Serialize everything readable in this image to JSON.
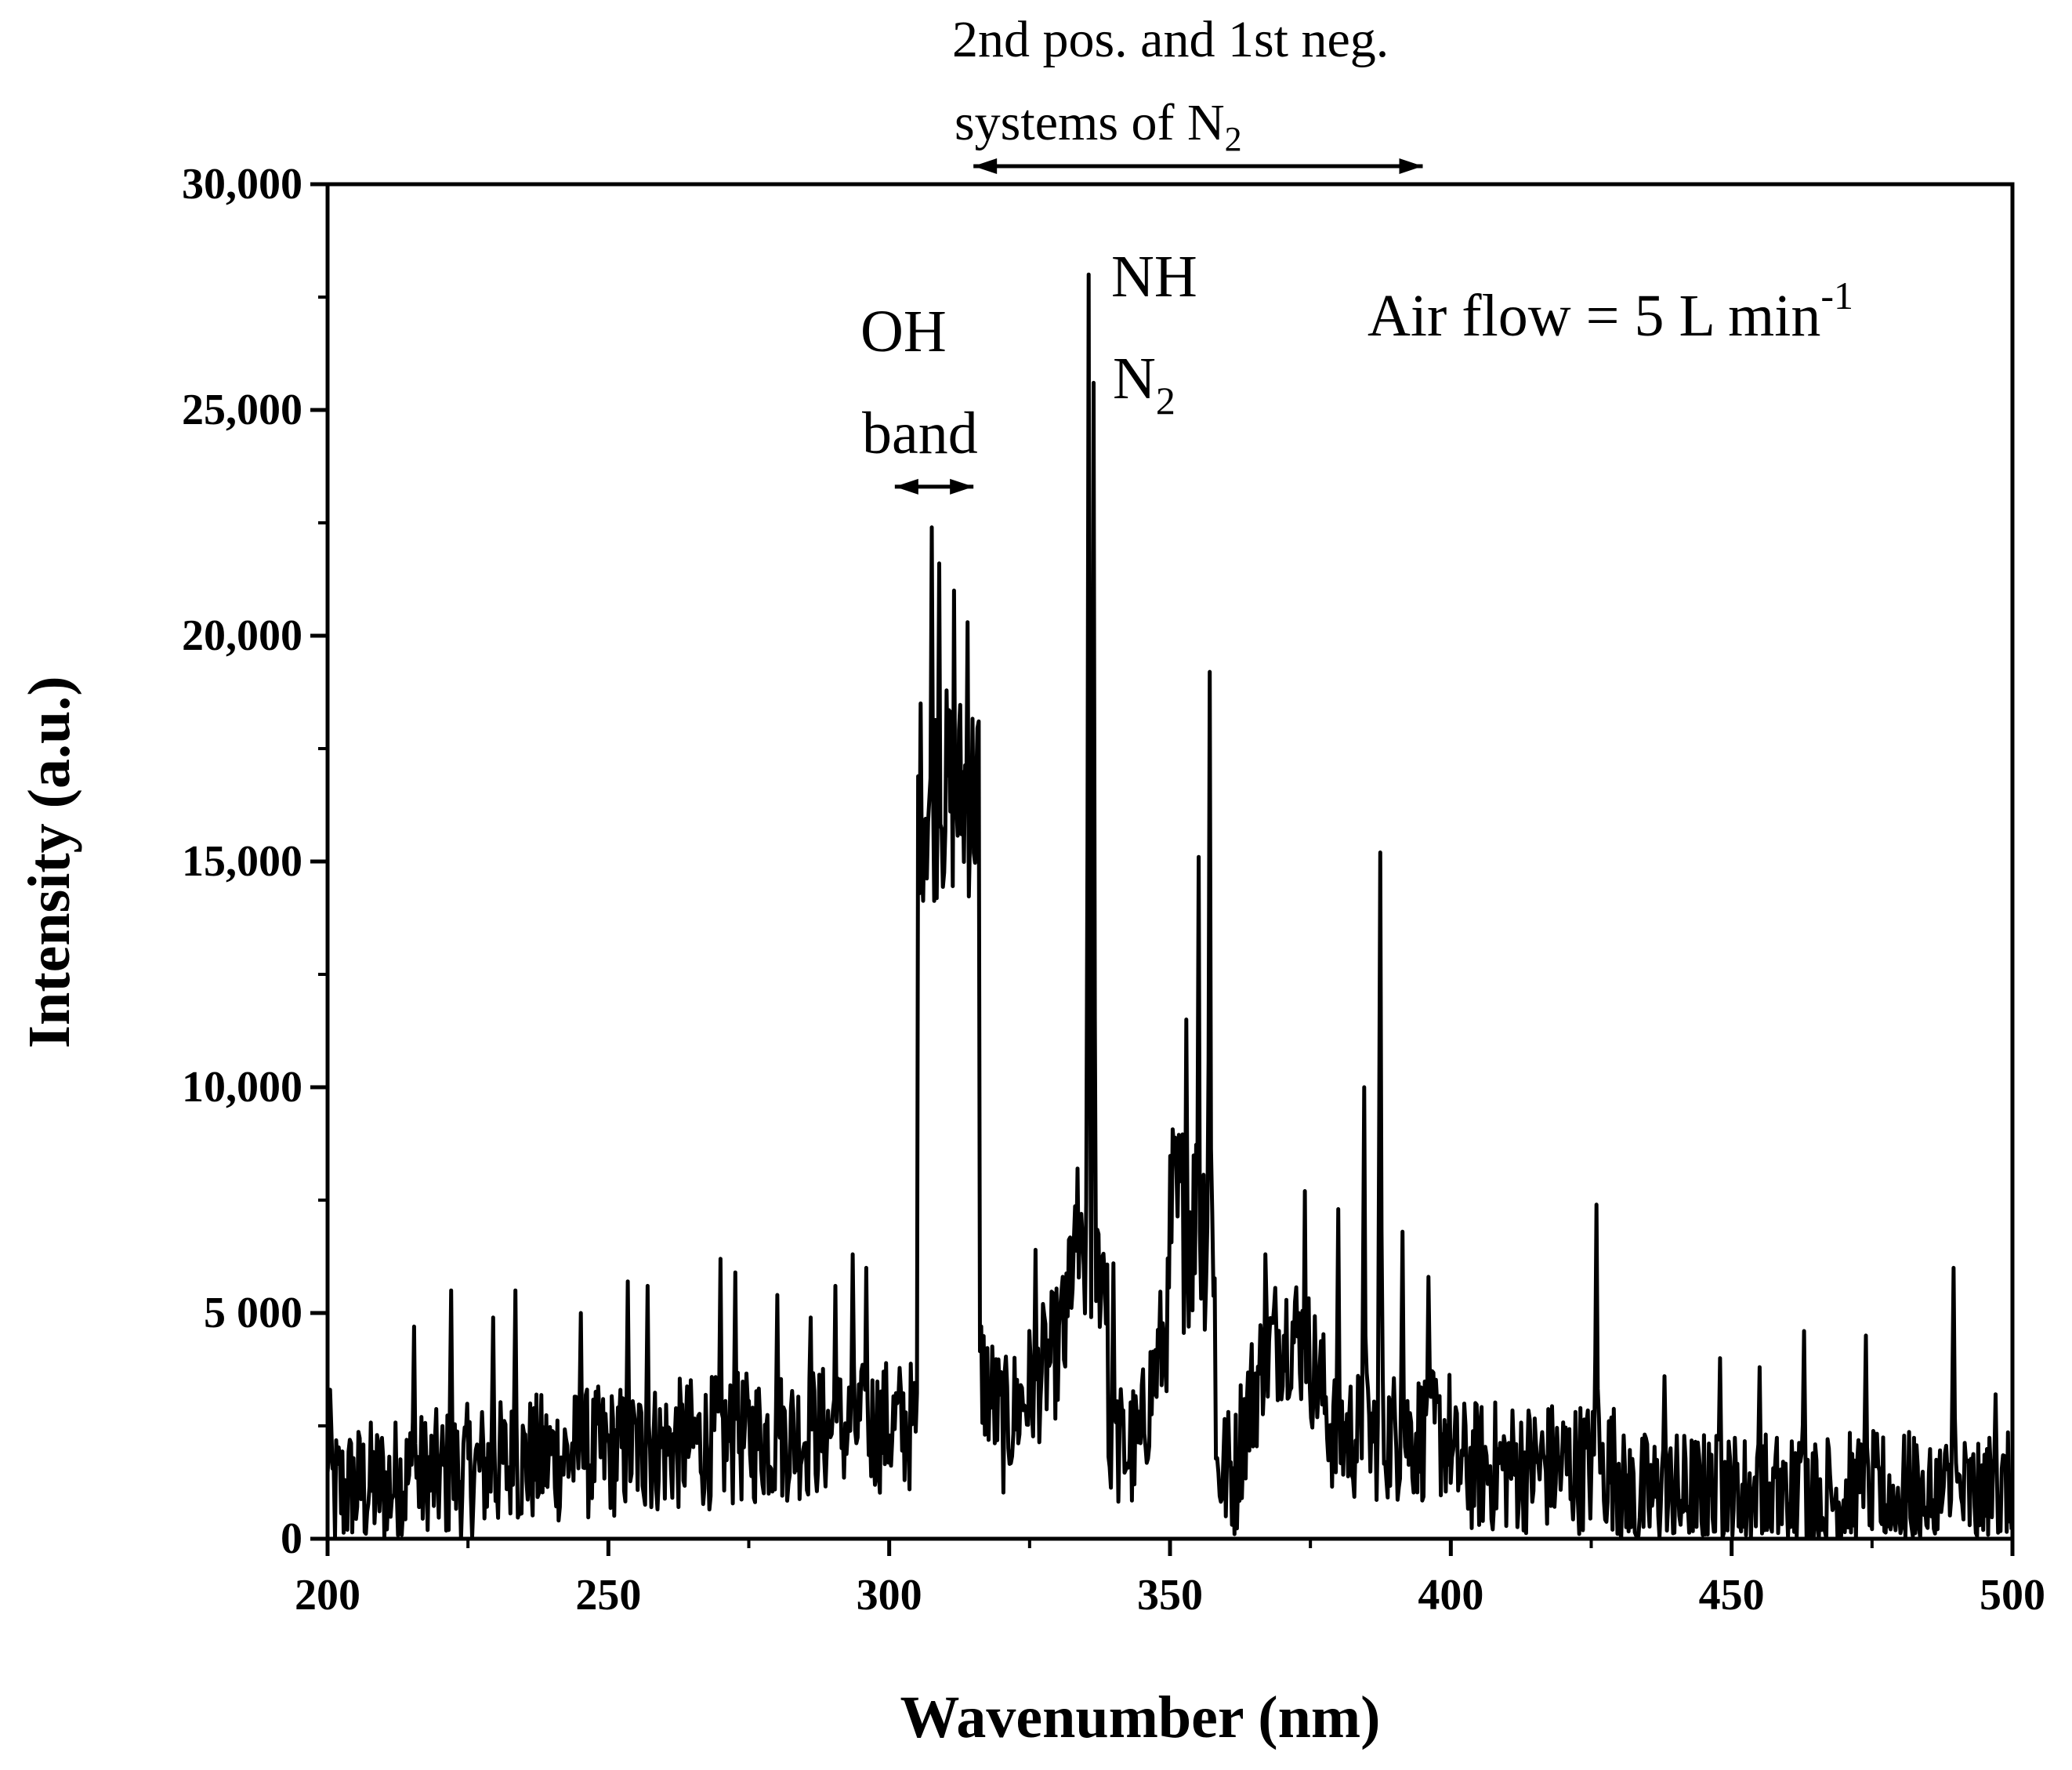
{
  "chart_data": {
    "type": "line",
    "title": "",
    "xlabel": "Wavenumber (nm)",
    "ylabel": "Intensity (a.u.)",
    "xlim": [
      200,
      500
    ],
    "ylim": [
      0,
      30000
    ],
    "grid": false,
    "x_ticks": [
      200,
      250,
      300,
      350,
      400,
      450,
      500
    ],
    "x_tick_labels": [
      "200",
      "250",
      "300",
      "350",
      "400",
      "450",
      "500"
    ],
    "y_ticks": [
      0,
      5000,
      10000,
      15000,
      20000,
      25000,
      30000
    ],
    "y_tick_labels": [
      "0",
      "5 000",
      "10,000",
      "15,000",
      "20,000",
      "25,000",
      "30,000"
    ],
    "series": [
      {
        "name": "Air flow = 5 L min-1",
        "color": "#000000",
        "peaks": [
          {
            "x": 200.5,
            "y": 3300
          },
          {
            "x": 215.5,
            "y": 4700
          },
          {
            "x": 222,
            "y": 5500
          },
          {
            "x": 229.5,
            "y": 4900
          },
          {
            "x": 233.5,
            "y": 5500
          },
          {
            "x": 245,
            "y": 5000
          },
          {
            "x": 253.5,
            "y": 5700
          },
          {
            "x": 257,
            "y": 5600
          },
          {
            "x": 270,
            "y": 6200
          },
          {
            "x": 272.5,
            "y": 5900
          },
          {
            "x": 280,
            "y": 5400
          },
          {
            "x": 286,
            "y": 4900
          },
          {
            "x": 290.5,
            "y": 5600
          },
          {
            "x": 293.5,
            "y": 6300
          },
          {
            "x": 296,
            "y": 6000
          },
          {
            "x": 305.5,
            "y": 18500
          },
          {
            "x": 307.5,
            "y": 22400
          },
          {
            "x": 309,
            "y": 21600
          },
          {
            "x": 311.5,
            "y": 21000
          },
          {
            "x": 314,
            "y": 20300
          },
          {
            "x": 326,
            "y": 6400
          },
          {
            "x": 331,
            "y": 5800
          },
          {
            "x": 333.5,
            "y": 8200
          },
          {
            "x": 335.5,
            "y": 28000
          },
          {
            "x": 336.5,
            "y": 25600
          },
          {
            "x": 340,
            "y": 6100
          },
          {
            "x": 353,
            "y": 11500
          },
          {
            "x": 355,
            "y": 15100
          },
          {
            "x": 357,
            "y": 19200
          },
          {
            "x": 367,
            "y": 6300
          },
          {
            "x": 374,
            "y": 7700
          },
          {
            "x": 380,
            "y": 7300
          },
          {
            "x": 384.5,
            "y": 10000
          },
          {
            "x": 387.5,
            "y": 15200
          },
          {
            "x": 391.5,
            "y": 6800
          },
          {
            "x": 396,
            "y": 5800
          },
          {
            "x": 426,
            "y": 7400
          },
          {
            "x": 438,
            "y": 3600
          },
          {
            "x": 448,
            "y": 4000
          },
          {
            "x": 455,
            "y": 3800
          },
          {
            "x": 463,
            "y": 4600
          },
          {
            "x": 474,
            "y": 4500
          },
          {
            "x": 489.5,
            "y": 6000
          },
          {
            "x": 497,
            "y": 3200
          }
        ]
      }
    ],
    "annotations": [
      {
        "text": "2nd pos. and 1st neg.",
        "line2": "systems of N",
        "line2_sub": "2",
        "range_x": [
          315,
          395
        ],
        "arrow_y": 30400
      },
      {
        "text": "OH",
        "line2": "band",
        "range_x": [
          301,
          315
        ],
        "arrow_y": 23300
      },
      {
        "text": "NH",
        "x": 336
      },
      {
        "text": "N",
        "sub": "2",
        "x": 336
      },
      {
        "text": "Air flow = 5 L min",
        "sup": "-1"
      }
    ]
  }
}
